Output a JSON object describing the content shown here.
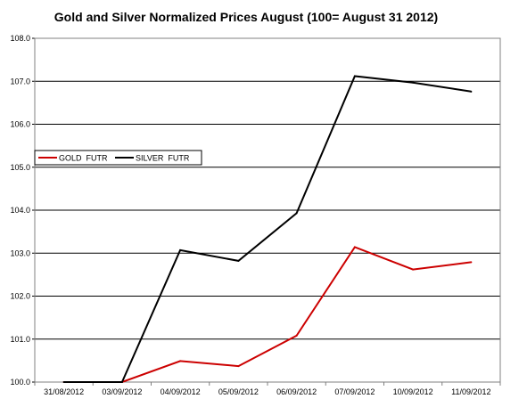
{
  "chart_data": {
    "type": "line",
    "title": "Gold and Silver Normalized Prices August (100= August 31 2012)",
    "xlabel": "",
    "ylabel": "",
    "categories": [
      "31/08/2012",
      "03/09/2012",
      "04/09/2012",
      "05/09/2012",
      "06/09/2012",
      "07/09/2012",
      "10/09/2012",
      "11/09/2012"
    ],
    "ylim": [
      100.0,
      108.0
    ],
    "yticks": [
      "100.0",
      "101.0",
      "102.0",
      "103.0",
      "104.0",
      "105.0",
      "106.0",
      "107.0",
      "108.0"
    ],
    "grid": true,
    "legend_position": "left",
    "series": [
      {
        "name": "GOLD  FUTR",
        "color": "#cc0000",
        "values": [
          100.0,
          100.0,
          100.49,
          100.37,
          101.08,
          103.14,
          102.62,
          102.79
        ]
      },
      {
        "name": "SILVER  FUTR",
        "color": "#000000",
        "values": [
          100.0,
          100.0,
          103.07,
          102.82,
          103.93,
          107.12,
          106.97,
          106.76
        ]
      }
    ]
  }
}
